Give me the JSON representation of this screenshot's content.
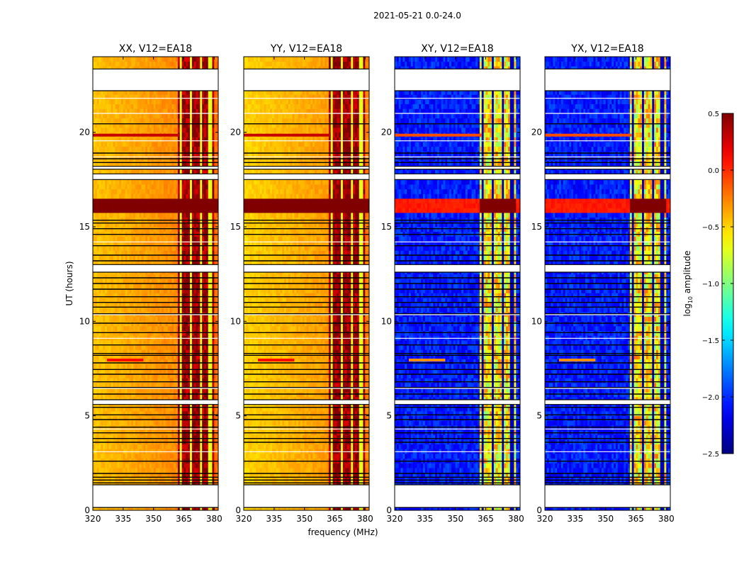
{
  "figure": {
    "suptitle": "2021-05-21 0.0-24.0",
    "xlabel": "frequency (MHz)",
    "ylabel": "UT (hours)"
  },
  "chart_data": {
    "type": "heatmap",
    "x": {
      "label": "frequency (MHz)",
      "min": 320,
      "max": 382,
      "ticks": [
        320,
        335,
        350,
        365,
        380
      ]
    },
    "y": {
      "label": "UT (hours)",
      "min": 0,
      "max": 24,
      "ticks": [
        0,
        5,
        10,
        15,
        20
      ]
    },
    "colorbar": {
      "label_main": "log",
      "label_sub": "10",
      "label_tail": " amplitude",
      "min": -2.5,
      "max": 0.5,
      "ticks": [
        0.5,
        0.0,
        -0.5,
        -1.0,
        -1.5,
        -2.0,
        -2.5
      ],
      "tick_labels": [
        "0.5",
        "0.0",
        "−0.5",
        "−1.0",
        "−1.5",
        "−2.0",
        "−2.5"
      ],
      "colormap": "jet"
    },
    "panels": [
      {
        "title": "XX, V12=EA18",
        "pol": "parallel",
        "base": -0.45,
        "band_level": 0.45
      },
      {
        "title": "YY, V12=EA18",
        "pol": "parallel",
        "base": -0.5,
        "band_level": 0.45
      },
      {
        "title": "XY, V12=EA18",
        "pol": "cross",
        "base": -2.05,
        "band_level": -0.6
      },
      {
        "title": "YX, V12=EA18",
        "pol": "cross",
        "base": -2.05,
        "band_level": -0.6
      }
    ],
    "band_freq_range": [
      362,
      380
    ],
    "band_channel_freqs": [
      363.5,
      368.5,
      373.5,
      378
    ],
    "rfi_time_range": [
      15.7,
      16.6
    ],
    "rfi_level": 0.5,
    "data_gaps": [
      [
        0.15,
        1.35
      ],
      [
        12.6,
        13.0
      ],
      [
        17.5,
        17.8
      ],
      [
        18.05,
        18.2
      ],
      [
        22.2,
        23.35
      ],
      [
        5.6,
        5.85
      ]
    ],
    "flag_times": [
      1.45,
      1.6,
      1.75,
      1.95,
      2.6,
      3.6,
      3.8,
      4.1,
      4.4,
      4.8,
      5.05,
      5.45,
      6.15,
      6.5,
      6.8,
      7.2,
      7.45,
      7.8,
      8.2,
      8.3,
      8.75,
      9.4,
      9.9,
      10.4,
      10.75,
      11.0,
      11.3,
      11.7,
      12.0,
      12.3,
      13.2,
      13.5,
      14.0,
      14.6,
      14.9,
      15.2,
      15.35,
      18.4,
      18.6,
      18.9,
      20.45,
      22.25
    ],
    "white_line_times": [
      3.1,
      4.3,
      6.45,
      9.1,
      10.35,
      14.2,
      18.7,
      19.55,
      21.0,
      21.8
    ],
    "hot_rows": [
      {
        "t": 19.85,
        "f0": 320,
        "f1": 363,
        "level": 0.3
      },
      {
        "t": 7.95,
        "f0": 327,
        "f1": 345,
        "level": 0.1
      }
    ]
  }
}
